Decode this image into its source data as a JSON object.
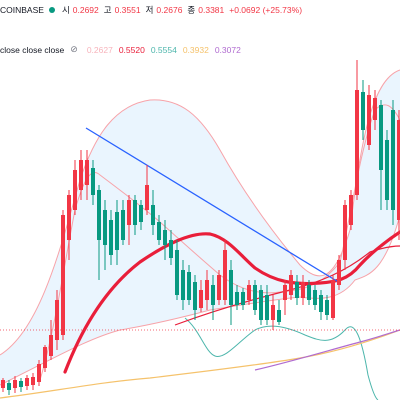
{
  "colors": {
    "up": "#f23645",
    "down": "#089981",
    "trendline": "#2962ff",
    "ma_thick": "#e91e3a",
    "bb_line": "#f7a3a9",
    "bb_fill": "#e3f2fd",
    "teal_band": "#4db6ac",
    "orange_ma": "#f5c26b",
    "purple_ma": "#b06bd0",
    "hline": "#f23645"
  },
  "header": {
    "source": "COINBASE",
    "open_label": "시",
    "open": "0.2692",
    "high_label": "고",
    "high": "0.3551",
    "low_label": "저",
    "low": "0.2676",
    "close_label": "종",
    "close": "0.3381",
    "change": "+0.0692 (+25.73%)"
  },
  "indicator": {
    "name": "close close close",
    "hide_icon": "eye-slash-icon",
    "values": [
      {
        "value": "0.2627",
        "color": "#f7b3bb"
      },
      {
        "value": "0.5520",
        "color": "#e91e3a"
      },
      {
        "value": "0.5554",
        "color": "#4db6ac"
      },
      {
        "value": "0.3932",
        "color": "#f5c26b"
      },
      {
        "value": "0.3072",
        "color": "#b06bd0"
      }
    ]
  }
}
